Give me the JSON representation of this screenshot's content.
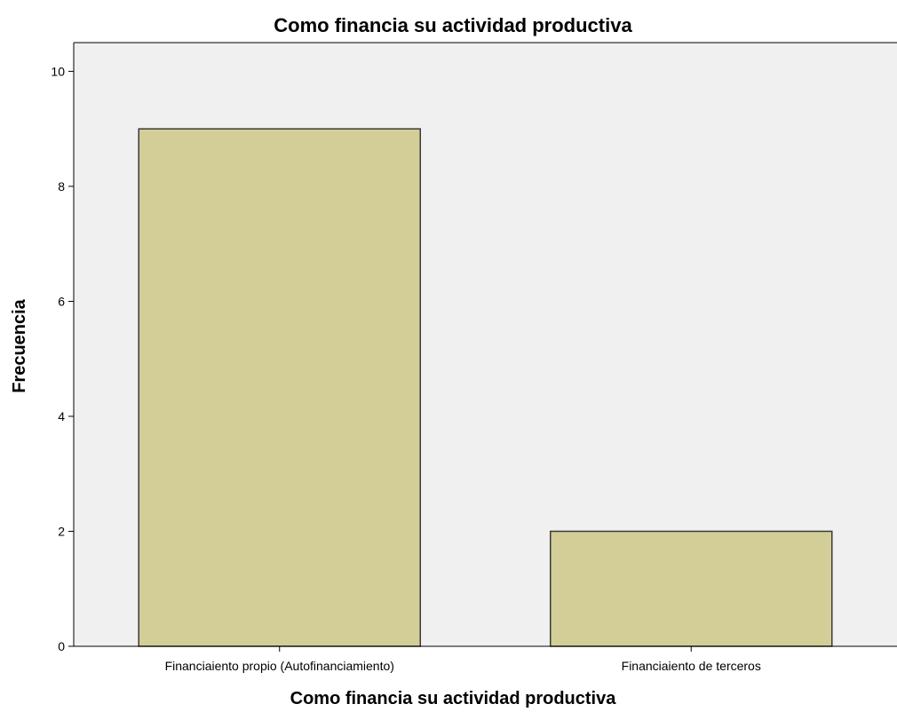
{
  "chart_data": {
    "type": "bar",
    "title": "Como financia su actividad productiva",
    "xlabel": "Como financia su actividad productiva",
    "ylabel": "Frecuencia",
    "categories": [
      "Financiaiento propio (Autofinanciamiento)",
      "Financiaiento de terceros"
    ],
    "values": [
      9,
      2
    ],
    "ylim": [
      0,
      10.5
    ],
    "yticks": [
      0,
      2,
      4,
      6,
      8,
      10
    ],
    "grid": false,
    "colors": {
      "plot_background": "#f0f0f0",
      "bar_fill": "#d3ce97",
      "bar_stroke": "#3a3a3a"
    }
  }
}
